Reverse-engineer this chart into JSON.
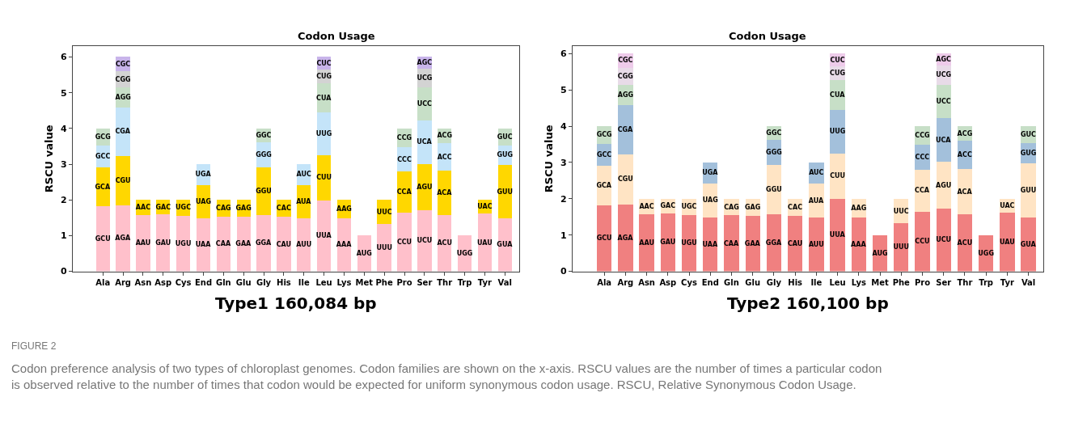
{
  "chart_data": [
    {
      "type": "bar",
      "stacked": true,
      "title": "Codon Usage",
      "ylabel": "RSCU value",
      "xlabel": "Type1 160,084 bp",
      "ylim": [
        0,
        6.3
      ],
      "yticks": [
        0,
        1,
        2,
        3,
        4,
        5,
        6
      ],
      "categories": [
        "Ala",
        "Arg",
        "Asn",
        "Asp",
        "Cys",
        "End",
        "Gln",
        "Glu",
        "Gly",
        "His",
        "Ile",
        "Leu",
        "Lys",
        "Met",
        "Phe",
        "Pro",
        "Ser",
        "Thr",
        "Trp",
        "Tyr",
        "Val"
      ],
      "series": [
        {
          "color": "#ffc0cb",
          "values": [
            1.82,
            1.85,
            1.58,
            1.59,
            1.56,
            1.49,
            1.54,
            1.53,
            1.58,
            1.52,
            1.48,
            1.99,
            1.49,
            1.0,
            1.32,
            1.65,
            1.72,
            1.58,
            1.0,
            1.61,
            1.49
          ],
          "value_labels": [
            "GCU",
            "AGA",
            "AAU",
            "GAU",
            "UGU",
            "UAA",
            "CAA",
            "GAA",
            "GGA",
            "CAU",
            "AUU",
            "UUA",
            "AAA",
            "AUG",
            "UUU",
            "CCU",
            "UCU",
            "ACU",
            "UGG",
            "UAU",
            "GUA"
          ]
        },
        {
          "color": "#ffd700",
          "values": [
            1.09,
            1.38,
            0.42,
            0.41,
            0.44,
            0.93,
            0.46,
            0.47,
            1.34,
            0.48,
            0.94,
            1.26,
            0.51,
            null,
            0.68,
            1.14,
            1.29,
            1.23,
            null,
            0.39,
            1.48
          ],
          "value_labels": [
            "GCA",
            "CGU",
            "AAC",
            "GAC",
            "UGC",
            "UAG",
            "CAG",
            "GAG",
            "GGU",
            "CAC",
            "AUA",
            "CUU",
            "AAG",
            null,
            "UUC",
            "CCA",
            "AGU",
            "ACA",
            null,
            "UAC",
            "GUU"
          ]
        },
        {
          "color": "#c4e4f9",
          "values": [
            0.61,
            1.36,
            null,
            null,
            null,
            0.58,
            null,
            null,
            0.7,
            null,
            0.58,
            1.19,
            null,
            null,
            null,
            0.69,
            1.21,
            0.78,
            null,
            null,
            0.56
          ],
          "value_labels": [
            "GCC",
            "CGA",
            null,
            null,
            null,
            "UGA",
            null,
            null,
            "GGG",
            null,
            "AUC",
            "UUG",
            null,
            null,
            null,
            "CCC",
            "UCA",
            "ACC",
            null,
            null,
            "GUG"
          ]
        },
        {
          "color": "#c7dfc7",
          "values": [
            0.48,
            0.55,
            null,
            null,
            null,
            null,
            null,
            null,
            0.38,
            null,
            null,
            0.82,
            null,
            null,
            null,
            0.52,
            0.92,
            0.41,
            null,
            null,
            0.47
          ],
          "value_labels": [
            "GCG",
            "AGG",
            null,
            null,
            null,
            null,
            null,
            null,
            "GGC",
            null,
            null,
            "CUA",
            null,
            null,
            null,
            "CCG",
            "UCC",
            "ACG",
            null,
            null,
            "GUC"
          ]
        },
        {
          "color": "#d3d3d3",
          "values": [
            null,
            0.47,
            null,
            null,
            null,
            null,
            null,
            null,
            null,
            null,
            null,
            0.38,
            null,
            null,
            null,
            null,
            0.53,
            null,
            null,
            null,
            null
          ],
          "value_labels": [
            null,
            "CGG",
            null,
            null,
            null,
            null,
            null,
            null,
            null,
            null,
            null,
            "CUG",
            null,
            null,
            null,
            null,
            "UCG",
            null,
            null,
            null,
            null
          ]
        },
        {
          "color": "#c8b4ea",
          "values": [
            null,
            0.39,
            null,
            null,
            null,
            null,
            null,
            null,
            null,
            null,
            null,
            0.36,
            null,
            null,
            null,
            null,
            0.33,
            null,
            null,
            null,
            null
          ],
          "value_labels": [
            null,
            "CGC",
            null,
            null,
            null,
            null,
            null,
            null,
            null,
            null,
            null,
            "CUC",
            null,
            null,
            null,
            null,
            "AGC",
            null,
            null,
            null,
            null
          ]
        }
      ],
      "annotations": [
        "FIGURE 2",
        "Codon preference analysis of two types of chloroplast genomes. Codon families are shown on the x-axis. RSCU values are the number of times a particular codon is observed relative to the number of times that codon would be expected for uniform synonymous codon usage. RSCU, Relative Synonymous Codon Usage."
      ]
    },
    {
      "type": "bar",
      "stacked": true,
      "title": "Codon Usage",
      "ylabel": "RSCU value",
      "xlabel": "Type2 160,100 bp",
      "ylim": [
        0,
        6.2
      ],
      "yticks": [
        0,
        1,
        2,
        3,
        4,
        5,
        6
      ],
      "categories": [
        "Ala",
        "Arg",
        "Asn",
        "Asp",
        "Cys",
        "End",
        "Gln",
        "Glu",
        "Gly",
        "His",
        "Ile",
        "Leu",
        "Lys",
        "Met",
        "Phe",
        "Pro",
        "Ser",
        "Thr",
        "Trp",
        "Tyr",
        "Val"
      ],
      "series": [
        {
          "color": "#f08080",
          "values": [
            1.82,
            1.85,
            1.58,
            1.59,
            1.56,
            1.49,
            1.54,
            1.53,
            1.58,
            1.52,
            1.48,
            1.99,
            1.49,
            1.0,
            1.32,
            1.65,
            1.72,
            1.58,
            1.0,
            1.61,
            1.49
          ],
          "value_labels": [
            "GCU",
            "AGA",
            "AAU",
            "GAU",
            "UGU",
            "UAA",
            "CAA",
            "GAA",
            "GGA",
            "CAU",
            "AUU",
            "UUA",
            "AAA",
            "AUG",
            "UUU",
            "CCU",
            "UCU",
            "ACU",
            "UGG",
            "UAU",
            "GUA"
          ]
        },
        {
          "color": "#ffe4c4",
          "values": [
            1.09,
            1.38,
            0.42,
            0.41,
            0.44,
            0.93,
            0.46,
            0.47,
            1.34,
            0.48,
            0.94,
            1.26,
            0.51,
            null,
            0.68,
            1.14,
            1.29,
            1.23,
            null,
            0.39,
            1.48
          ],
          "value_labels": [
            "GCA",
            "CGU",
            "AAC",
            "GAC",
            "UGC",
            "UAG",
            "CAG",
            "GAG",
            "GGU",
            "CAC",
            "AUA",
            "CUU",
            "AAG",
            null,
            "UUC",
            "CCA",
            "AGU",
            "ACA",
            null,
            "UAC",
            "GUU"
          ]
        },
        {
          "color": "#a3c0db",
          "values": [
            0.61,
            1.36,
            null,
            null,
            null,
            0.58,
            null,
            null,
            0.7,
            null,
            0.58,
            1.19,
            null,
            null,
            null,
            0.69,
            1.21,
            0.78,
            null,
            null,
            0.56
          ],
          "value_labels": [
            "GCC",
            "CGA",
            null,
            null,
            null,
            "UGA",
            null,
            null,
            "GGG",
            null,
            "AUC",
            "UUG",
            null,
            null,
            null,
            "CCC",
            "UCA",
            "ACC",
            null,
            null,
            "GUG"
          ]
        },
        {
          "color": "#c7dfc7",
          "values": [
            0.48,
            0.55,
            null,
            null,
            null,
            null,
            null,
            null,
            0.38,
            null,
            null,
            0.82,
            null,
            null,
            null,
            0.52,
            0.92,
            0.41,
            null,
            null,
            0.47
          ],
          "value_labels": [
            "GCG",
            "AGG",
            null,
            null,
            null,
            null,
            null,
            null,
            "GGC",
            null,
            null,
            "CUA",
            null,
            null,
            null,
            "CCG",
            "UCC",
            "ACG",
            null,
            null,
            "GUC"
          ]
        },
        {
          "color": "#e8dbe8",
          "values": [
            null,
            0.47,
            null,
            null,
            null,
            null,
            null,
            null,
            null,
            null,
            null,
            0.38,
            null,
            null,
            null,
            null,
            0.53,
            null,
            null,
            null,
            null
          ],
          "value_labels": [
            null,
            "CGG",
            null,
            null,
            null,
            null,
            null,
            null,
            null,
            null,
            null,
            "CUG",
            null,
            null,
            null,
            null,
            "UCG",
            null,
            null,
            null,
            null
          ]
        },
        {
          "color": "#eecbea",
          "values": [
            null,
            0.39,
            null,
            null,
            null,
            null,
            null,
            null,
            null,
            null,
            null,
            0.36,
            null,
            null,
            null,
            null,
            0.33,
            null,
            null,
            null,
            null
          ],
          "value_labels": [
            null,
            "CGC",
            null,
            null,
            null,
            null,
            null,
            null,
            null,
            null,
            null,
            "CUC",
            null,
            null,
            null,
            null,
            "AGC",
            null,
            null,
            null,
            null
          ]
        }
      ]
    }
  ]
}
